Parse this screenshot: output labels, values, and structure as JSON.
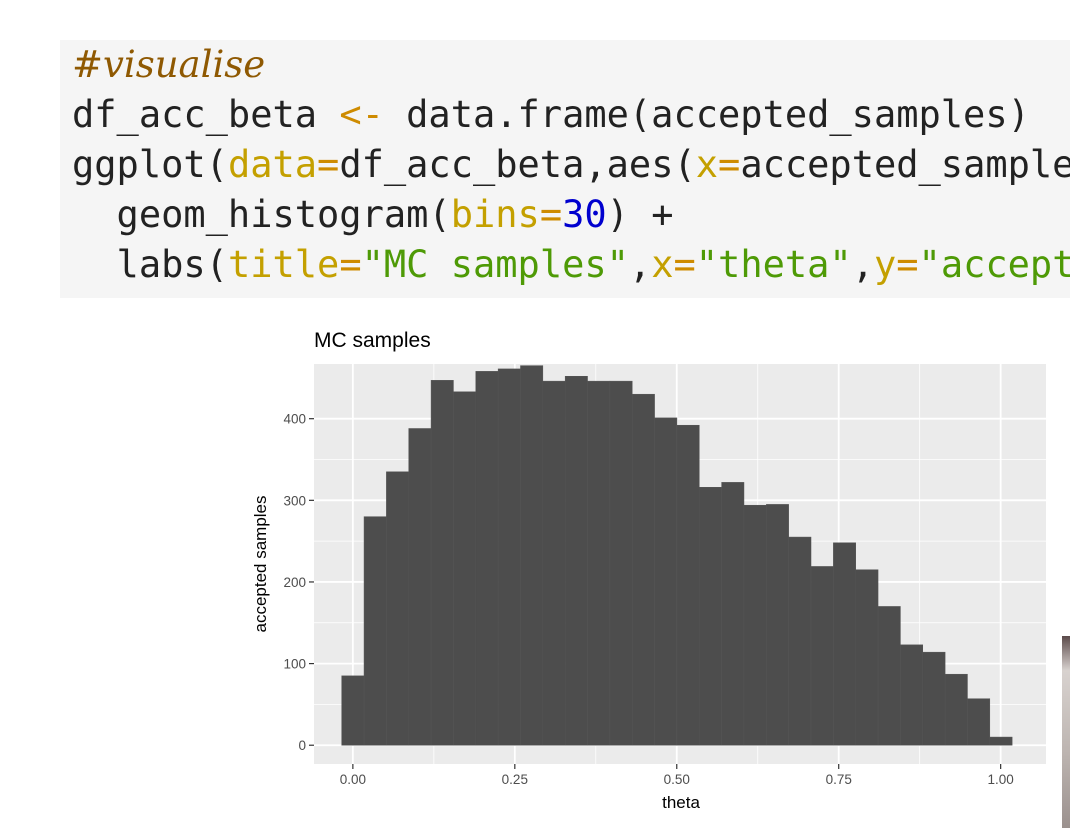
{
  "code": {
    "line1": "#visualise",
    "line2": {
      "a": "df_acc_beta ",
      "op": "<-",
      "b": " data.frame(accepted_samples)"
    },
    "line3": {
      "a": "ggplot(",
      "arg1": "data",
      "op1": "=",
      "b": "df_acc_beta,aes(",
      "arg2": "x",
      "op2": "=",
      "c": "accepted_samples)"
    },
    "line4": {
      "a": "  geom_histogram(",
      "arg": "bins",
      "op": "=",
      "num": "30",
      "b": ") +"
    },
    "line5": {
      "a": "  labs(",
      "arg1": "title",
      "op1": "=",
      "s1": "\"MC samples\"",
      "c1": ",",
      "arg2": "x",
      "op2": "=",
      "s2": "\"theta\"",
      "c2": ",",
      "arg3": "y",
      "op3": "=",
      "s3": "\"acceptec"
    }
  },
  "chart_data": {
    "type": "bar",
    "title": "MC samples",
    "xlabel": "theta",
    "ylabel": "accepted samples",
    "bin_width": 0.0345,
    "bin_centers": [
      0.0,
      0.0345,
      0.069,
      0.1035,
      0.138,
      0.1725,
      0.207,
      0.2415,
      0.276,
      0.3105,
      0.345,
      0.3795,
      0.414,
      0.4485,
      0.483,
      0.5175,
      0.552,
      0.5865,
      0.621,
      0.6555,
      0.69,
      0.7245,
      0.759,
      0.7935,
      0.828,
      0.8625,
      0.897,
      0.9315,
      0.966,
      1.0005
    ],
    "values": [
      85,
      280,
      335,
      388,
      447,
      433,
      458,
      461,
      465,
      446,
      452,
      446,
      446,
      430,
      401,
      392,
      316,
      322,
      294,
      295,
      255,
      219,
      248,
      215,
      170,
      123,
      114,
      87,
      57,
      10
    ],
    "xlim": [
      -0.06,
      1.07
    ],
    "ylim": [
      -23,
      467
    ],
    "x_ticks": [
      0.0,
      0.25,
      0.5,
      0.75,
      1.0
    ],
    "x_tick_labels": [
      "0.00",
      "0.25",
      "0.50",
      "0.75",
      "1.00"
    ],
    "y_ticks": [
      0,
      100,
      200,
      300,
      400
    ],
    "y_tick_labels": [
      "0",
      "100",
      "200",
      "300",
      "400"
    ],
    "grid": true,
    "colors": {
      "bar": "#4d4d4d",
      "panel": "#ebebeb",
      "grid": "#ffffff",
      "code_bg": "#f5f5f5"
    }
  }
}
